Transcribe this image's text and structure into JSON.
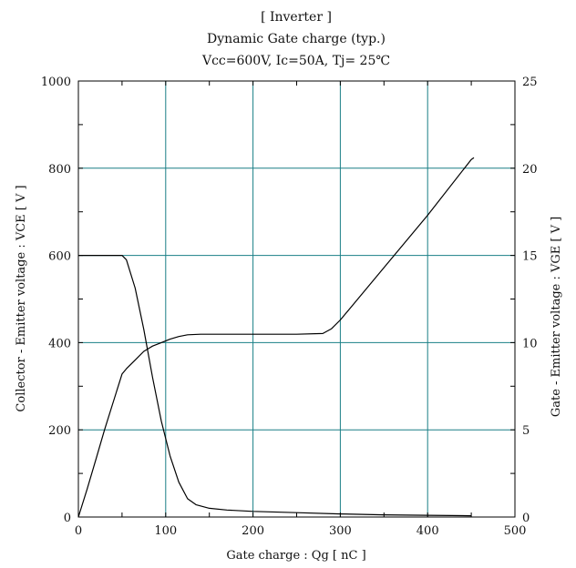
{
  "chart_data": {
    "type": "line",
    "title_lines": [
      "[ Inverter ]",
      "Dynamic Gate charge  (typ.)",
      "Vcc=600V, Ic=50A, Tj= 25℃"
    ],
    "xlabel": "Gate charge  :  Qg  [ nC ]",
    "ylabel_left": "Collector - Emitter voltage  :  VCE  [ V ]",
    "ylabel_right": "Gate - Emitter voltage  :  VGE  [ V ]",
    "xlim": [
      0,
      500
    ],
    "ylim_left": [
      0,
      1000
    ],
    "ylim_right": [
      0,
      25
    ],
    "x_ticks": [
      "0",
      "100",
      "200",
      "300",
      "400",
      "500"
    ],
    "y_left_ticks": [
      "0",
      "200",
      "400",
      "600",
      "800",
      "1000"
    ],
    "y_right_ticks": [
      "0",
      "5",
      "10",
      "15",
      "20",
      "25"
    ],
    "grid": true,
    "colors": {
      "grid": "#1a7f86",
      "line": "#000000"
    },
    "series": [
      {
        "axis": "left",
        "points": [
          [
            0,
            600
          ],
          [
            50,
            600
          ],
          [
            55,
            590
          ],
          [
            65,
            525
          ],
          [
            75,
            430
          ],
          [
            85,
            320
          ],
          [
            95,
            220
          ],
          [
            105,
            140
          ],
          [
            115,
            80
          ],
          [
            125,
            42
          ],
          [
            135,
            28
          ],
          [
            150,
            20
          ],
          [
            170,
            16
          ],
          [
            200,
            13
          ],
          [
            250,
            10
          ],
          [
            300,
            7
          ],
          [
            350,
            5
          ],
          [
            400,
            4
          ],
          [
            450,
            3
          ]
        ]
      },
      {
        "axis": "right",
        "points": [
          [
            0,
            0
          ],
          [
            10,
            1.6
          ],
          [
            20,
            3.3
          ],
          [
            30,
            5.0
          ],
          [
            40,
            6.6
          ],
          [
            50,
            8.2
          ],
          [
            55,
            8.5
          ],
          [
            65,
            9.0
          ],
          [
            75,
            9.5
          ],
          [
            85,
            9.8
          ],
          [
            95,
            10.0
          ],
          [
            105,
            10.2
          ],
          [
            115,
            10.35
          ],
          [
            125,
            10.45
          ],
          [
            140,
            10.48
          ],
          [
            200,
            10.48
          ],
          [
            250,
            10.48
          ],
          [
            280,
            10.52
          ],
          [
            290,
            10.8
          ],
          [
            300,
            11.3
          ],
          [
            320,
            12.5
          ],
          [
            350,
            14.3
          ],
          [
            400,
            17.3
          ],
          [
            450,
            20.5
          ],
          [
            453,
            20.6
          ]
        ]
      }
    ]
  }
}
